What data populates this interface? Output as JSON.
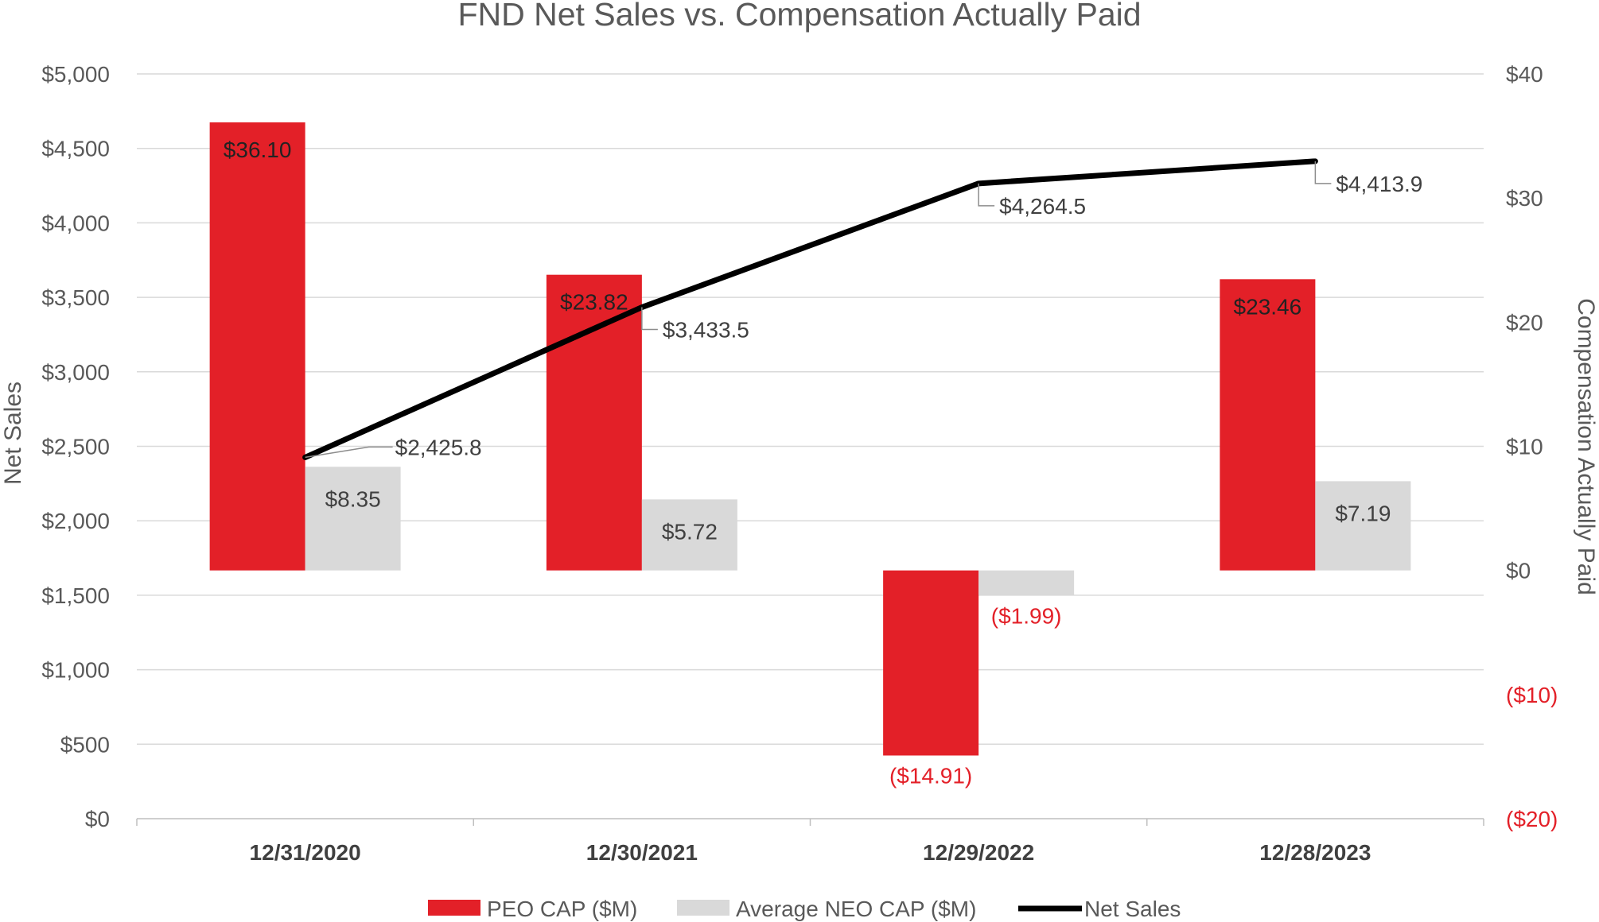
{
  "chart_data": {
    "type": "bar+line",
    "title": "FND Net Sales vs. Compensation Actually Paid",
    "categories": [
      "12/31/2020",
      "12/30/2021",
      "12/29/2022",
      "12/28/2023"
    ],
    "series": [
      {
        "name": "PEO CAP ($M)",
        "type": "bar",
        "axis": "right",
        "color": "#e32028",
        "values": [
          36.1,
          23.82,
          -14.91,
          23.46
        ],
        "labels": [
          "$36.10",
          "$23.82",
          "($14.91)",
          "$23.46"
        ]
      },
      {
        "name": "Average NEO CAP ($M)",
        "type": "bar",
        "axis": "right",
        "color": "#d9d9d9",
        "values": [
          8.35,
          5.72,
          -1.99,
          7.19
        ],
        "labels": [
          "$8.35",
          "$5.72",
          "($1.99)",
          "$7.19"
        ]
      },
      {
        "name": "Net Sales",
        "type": "line",
        "axis": "left",
        "color": "#000000",
        "values": [
          2425.8,
          3433.5,
          4264.5,
          4413.9
        ],
        "labels": [
          "$2,425.8",
          "$3,433.5",
          "$4,264.5",
          "$4,413.9"
        ]
      }
    ],
    "y_left": {
      "label": "Net Sales",
      "lim": [
        0,
        5000
      ],
      "ticks": [
        0,
        500,
        1000,
        1500,
        2000,
        2500,
        3000,
        3500,
        4000,
        4500,
        5000
      ],
      "tick_labels": [
        "$0",
        "$500",
        "$1,000",
        "$1,500",
        "$2,000",
        "$2,500",
        "$3,000",
        "$3,500",
        "$4,000",
        "$4,500",
        "$5,000"
      ]
    },
    "y_right": {
      "label": "Compensation Actually Paid",
      "lim": [
        -20,
        40
      ],
      "ticks": [
        -20,
        -10,
        0,
        10,
        20,
        30,
        40
      ],
      "tick_labels": [
        "($20)",
        "($10)",
        "$0",
        "$10",
        "$20",
        "$30",
        "$40"
      ]
    },
    "grid": true,
    "legend": "bottom-center"
  },
  "colors": {
    "peo": "#e32028",
    "neo": "#d9d9d9",
    "line": "#000000",
    "grid": "#d9d9d9",
    "negative_text": "#e32028"
  }
}
